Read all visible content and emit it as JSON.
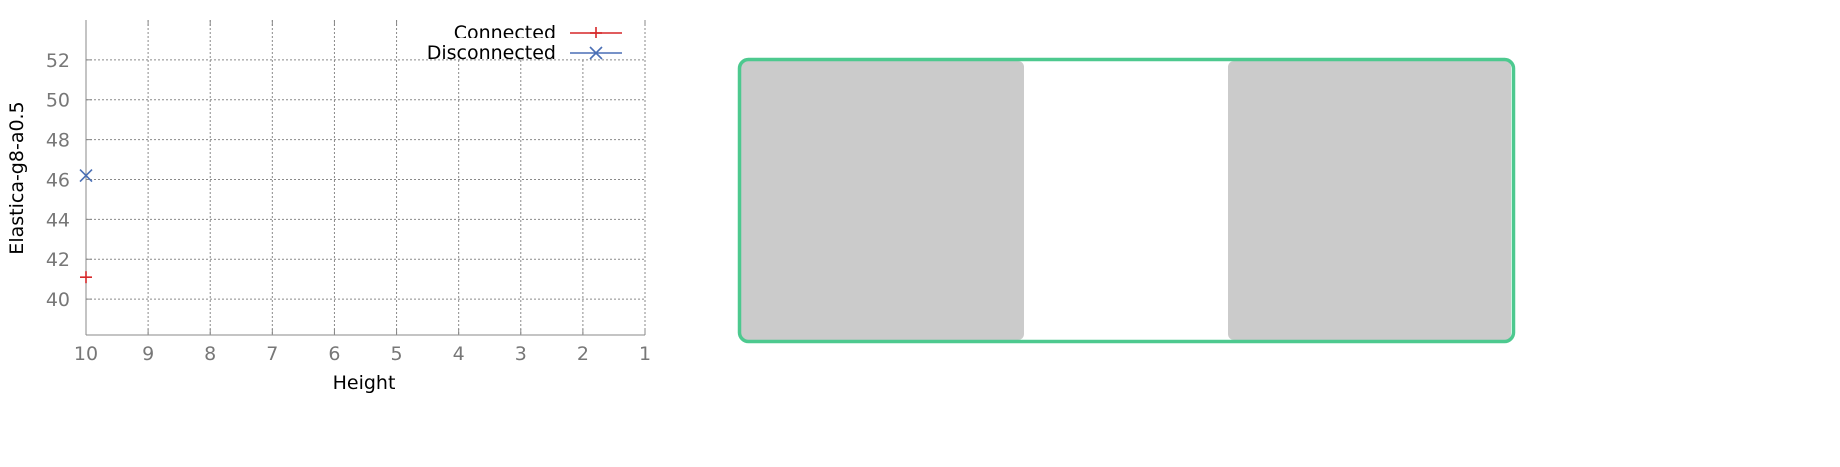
{
  "chart_data": {
    "type": "scatter",
    "xlabel": "Height",
    "ylabel": "Elastica-g8-a0.5",
    "x_reversed": true,
    "xlim": [
      10,
      1
    ],
    "ylim": [
      38.2,
      54
    ],
    "x_ticks": [
      10,
      9,
      8,
      7,
      6,
      5,
      4,
      3,
      2,
      1
    ],
    "y_ticks": [
      40,
      42,
      44,
      46,
      48,
      50,
      52
    ],
    "grid": true,
    "legend_position": "top-right",
    "series": [
      {
        "name": "Connected",
        "marker": "plus",
        "color": "#d62728",
        "points": [
          {
            "x": 10,
            "y": 41.1
          }
        ]
      },
      {
        "name": "Disconnected",
        "marker": "cross",
        "color": "#4a6fb5",
        "points": [
          {
            "x": 10,
            "y": 46.2
          }
        ]
      }
    ]
  },
  "side_panel": {
    "border_color": "#4dc98f",
    "block_color": "#cbcbcb"
  }
}
